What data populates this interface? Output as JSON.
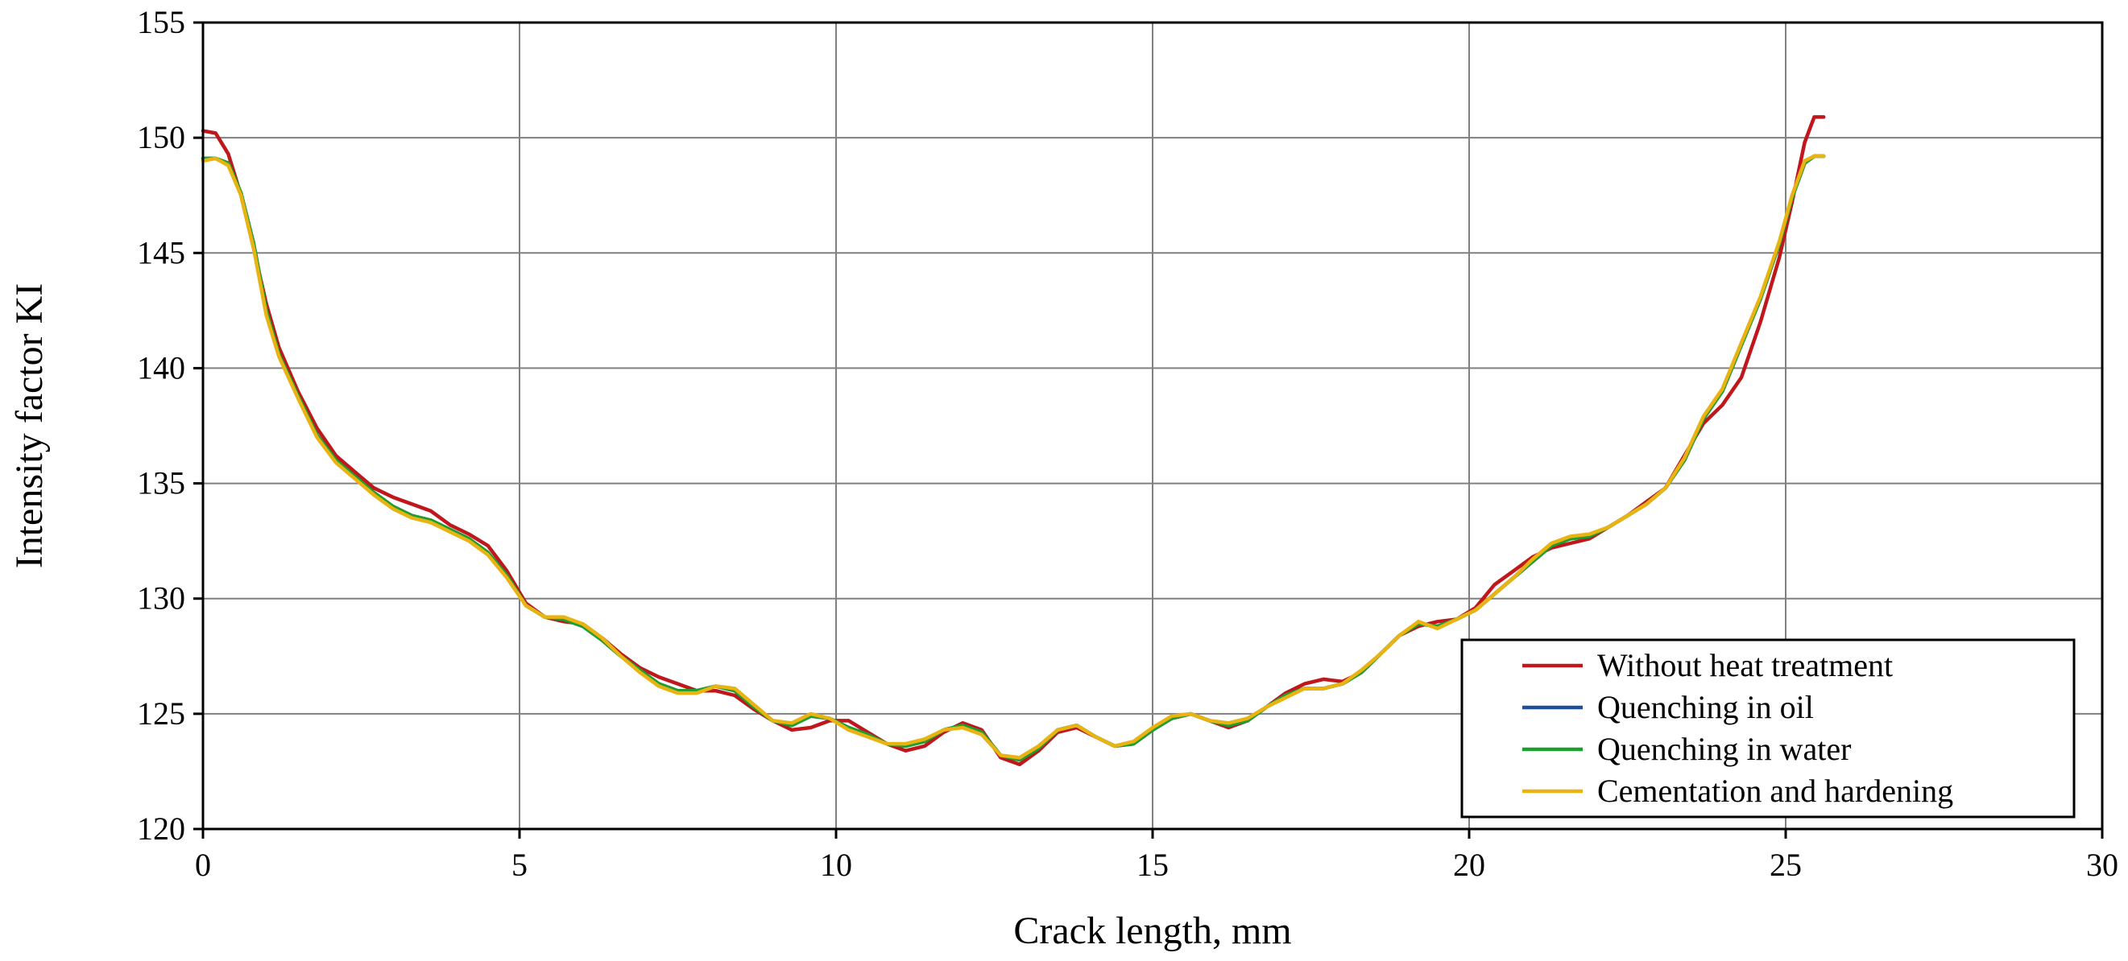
{
  "chart_data": {
    "type": "line",
    "title": "",
    "xlabel": "Crack length, mm",
    "ylabel": "Intensity factor KI",
    "xlim": [
      0,
      30
    ],
    "ylim": [
      120,
      155
    ],
    "xticks": [
      0,
      5,
      10,
      15,
      20,
      25,
      30
    ],
    "yticks": [
      120,
      125,
      130,
      135,
      140,
      145,
      150,
      155
    ],
    "grid": true,
    "legend_position": "lower-right",
    "series": [
      {
        "name": "Without heat treatment",
        "color": "#c0171c",
        "x": [
          0,
          0.2,
          0.4,
          0.6,
          0.8,
          1.0,
          1.2,
          1.5,
          1.8,
          2.1,
          2.4,
          2.7,
          3.0,
          3.3,
          3.6,
          3.9,
          4.2,
          4.5,
          4.8,
          5.1,
          5.4,
          5.7,
          6.0,
          6.3,
          6.6,
          6.9,
          7.2,
          7.5,
          7.8,
          8.1,
          8.4,
          8.7,
          9.0,
          9.3,
          9.6,
          9.9,
          10.2,
          10.5,
          10.8,
          11.1,
          11.4,
          11.7,
          12.0,
          12.3,
          12.6,
          12.9,
          13.2,
          13.5,
          13.8,
          14.1,
          14.4,
          14.7,
          15.0,
          15.3,
          15.6,
          15.9,
          16.2,
          16.5,
          16.8,
          17.1,
          17.4,
          17.7,
          18.0,
          18.3,
          18.6,
          18.9,
          19.2,
          19.5,
          19.8,
          20.1,
          20.4,
          20.7,
          21.0,
          21.3,
          21.6,
          21.9,
          22.2,
          22.5,
          22.8,
          23.1,
          23.4,
          23.7,
          24.0,
          24.3,
          24.6,
          24.9,
          25.1,
          25.3,
          25.45,
          25.6
        ],
        "y": [
          150.3,
          150.2,
          149.3,
          147.5,
          145.2,
          142.8,
          140.9,
          139.0,
          137.4,
          136.2,
          135.5,
          134.8,
          134.4,
          134.1,
          133.8,
          133.2,
          132.8,
          132.3,
          131.2,
          129.8,
          129.2,
          129.0,
          128.9,
          128.3,
          127.6,
          127.0,
          126.6,
          126.3,
          126.0,
          126.0,
          125.8,
          125.2,
          124.7,
          124.3,
          124.4,
          124.7,
          124.7,
          124.2,
          123.7,
          123.4,
          123.6,
          124.2,
          124.6,
          124.3,
          123.1,
          122.8,
          123.4,
          124.2,
          124.4,
          124.0,
          123.6,
          123.7,
          124.3,
          124.8,
          125.0,
          124.7,
          124.4,
          124.7,
          125.3,
          125.9,
          126.3,
          126.5,
          126.4,
          126.8,
          127.6,
          128.4,
          128.8,
          129.0,
          129.1,
          129.6,
          130.6,
          131.2,
          131.8,
          132.2,
          132.4,
          132.6,
          133.1,
          133.6,
          134.2,
          134.8,
          136.2,
          137.6,
          138.4,
          139.6,
          142.0,
          144.8,
          147.2,
          149.8,
          150.9,
          150.9
        ]
      },
      {
        "name": "Quenching in oil",
        "color": "#1f4e9a",
        "x": [
          0,
          0.2,
          0.4,
          0.6,
          0.8,
          1.0,
          1.2,
          1.5,
          1.8,
          2.1,
          2.4,
          2.7,
          3.0,
          3.3,
          3.6,
          3.9,
          4.2,
          4.5,
          4.8,
          5.1,
          5.4,
          5.7,
          6.0,
          6.3,
          6.6,
          6.9,
          7.2,
          7.5,
          7.8,
          8.1,
          8.4,
          8.7,
          9.0,
          9.3,
          9.6,
          9.9,
          10.2,
          10.5,
          10.8,
          11.1,
          11.4,
          11.7,
          12.0,
          12.3,
          12.6,
          12.9,
          13.2,
          13.5,
          13.8,
          14.1,
          14.4,
          14.7,
          15.0,
          15.3,
          15.6,
          15.9,
          16.2,
          16.5,
          16.8,
          17.1,
          17.4,
          17.7,
          18.0,
          18.3,
          18.6,
          18.9,
          19.2,
          19.5,
          19.8,
          20.1,
          20.4,
          20.7,
          21.0,
          21.3,
          21.6,
          21.9,
          22.2,
          22.5,
          22.8,
          23.1,
          23.4,
          23.7,
          24.0,
          24.3,
          24.6,
          24.9,
          25.1,
          25.3,
          25.45,
          25.6
        ],
        "y": [
          149.1,
          149.1,
          148.9,
          147.6,
          145.4,
          142.5,
          140.6,
          138.8,
          137.1,
          136.0,
          135.3,
          134.6,
          134.0,
          133.6,
          133.4,
          133.0,
          132.6,
          132.0,
          131.0,
          129.7,
          129.2,
          129.1,
          128.8,
          128.2,
          127.5,
          126.9,
          126.3,
          126.0,
          126.0,
          126.2,
          126.0,
          125.3,
          124.7,
          124.5,
          124.9,
          124.8,
          124.4,
          124.1,
          123.7,
          123.6,
          123.8,
          124.3,
          124.5,
          124.2,
          123.2,
          123.0,
          123.5,
          124.3,
          124.5,
          124.0,
          123.6,
          123.7,
          124.3,
          124.8,
          125.0,
          124.7,
          124.5,
          124.7,
          125.3,
          125.8,
          126.1,
          126.1,
          126.3,
          126.8,
          127.6,
          128.4,
          128.9,
          128.8,
          129.1,
          129.5,
          130.2,
          130.9,
          131.6,
          132.3,
          132.6,
          132.7,
          133.1,
          133.6,
          134.1,
          134.8,
          136.0,
          137.8,
          139.0,
          141.0,
          143.0,
          145.4,
          147.4,
          148.9,
          149.2,
          149.2
        ]
      },
      {
        "name": "Quenching in water",
        "color": "#1e9e2e",
        "x": [
          0,
          0.2,
          0.4,
          0.6,
          0.8,
          1.0,
          1.2,
          1.5,
          1.8,
          2.1,
          2.4,
          2.7,
          3.0,
          3.3,
          3.6,
          3.9,
          4.2,
          4.5,
          4.8,
          5.1,
          5.4,
          5.7,
          6.0,
          6.3,
          6.6,
          6.9,
          7.2,
          7.5,
          7.8,
          8.1,
          8.4,
          8.7,
          9.0,
          9.3,
          9.6,
          9.9,
          10.2,
          10.5,
          10.8,
          11.1,
          11.4,
          11.7,
          12.0,
          12.3,
          12.6,
          12.9,
          13.2,
          13.5,
          13.8,
          14.1,
          14.4,
          14.7,
          15.0,
          15.3,
          15.6,
          15.9,
          16.2,
          16.5,
          16.8,
          17.1,
          17.4,
          17.7,
          18.0,
          18.3,
          18.6,
          18.9,
          19.2,
          19.5,
          19.8,
          20.1,
          20.4,
          20.7,
          21.0,
          21.3,
          21.6,
          21.9,
          22.2,
          22.5,
          22.8,
          23.1,
          23.4,
          23.7,
          24.0,
          24.3,
          24.6,
          24.9,
          25.1,
          25.3,
          25.45,
          25.6
        ],
        "y": [
          149.1,
          149.1,
          148.9,
          147.6,
          145.4,
          142.5,
          140.6,
          138.8,
          137.1,
          136.0,
          135.3,
          134.6,
          134.0,
          133.6,
          133.4,
          133.0,
          132.6,
          132.0,
          131.0,
          129.7,
          129.2,
          129.1,
          128.8,
          128.2,
          127.5,
          126.9,
          126.3,
          126.0,
          126.0,
          126.2,
          126.0,
          125.3,
          124.7,
          124.5,
          124.9,
          124.8,
          124.4,
          124.1,
          123.7,
          123.6,
          123.8,
          124.3,
          124.5,
          124.2,
          123.2,
          123.0,
          123.5,
          124.3,
          124.5,
          124.0,
          123.6,
          123.7,
          124.3,
          124.8,
          125.0,
          124.7,
          124.5,
          124.7,
          125.3,
          125.8,
          126.1,
          126.1,
          126.3,
          126.8,
          127.6,
          128.4,
          128.9,
          128.8,
          129.1,
          129.5,
          130.2,
          130.9,
          131.6,
          132.3,
          132.6,
          132.7,
          133.1,
          133.6,
          134.1,
          134.8,
          136.0,
          137.8,
          139.0,
          141.0,
          143.0,
          145.4,
          147.4,
          148.9,
          149.2,
          149.2
        ]
      },
      {
        "name": "Cementation and hardening",
        "color": "#e9b312",
        "x": [
          0,
          0.2,
          0.4,
          0.6,
          0.8,
          1.0,
          1.2,
          1.5,
          1.8,
          2.1,
          2.4,
          2.7,
          3.0,
          3.3,
          3.6,
          3.9,
          4.2,
          4.5,
          4.8,
          5.1,
          5.4,
          5.7,
          6.0,
          6.3,
          6.6,
          6.9,
          7.2,
          7.5,
          7.8,
          8.1,
          8.4,
          8.7,
          9.0,
          9.3,
          9.6,
          9.9,
          10.2,
          10.5,
          10.8,
          11.1,
          11.4,
          11.7,
          12.0,
          12.3,
          12.6,
          12.9,
          13.2,
          13.5,
          13.8,
          14.1,
          14.4,
          14.7,
          15.0,
          15.3,
          15.6,
          15.9,
          16.2,
          16.5,
          16.8,
          17.1,
          17.4,
          17.7,
          18.0,
          18.3,
          18.6,
          18.9,
          19.2,
          19.5,
          19.8,
          20.1,
          20.4,
          20.7,
          21.0,
          21.3,
          21.6,
          21.9,
          22.2,
          22.5,
          22.8,
          23.1,
          23.4,
          23.7,
          24.0,
          24.3,
          24.6,
          24.9,
          25.1,
          25.3,
          25.45,
          25.6
        ],
        "y": [
          149.0,
          149.1,
          148.8,
          147.5,
          145.2,
          142.3,
          140.5,
          138.7,
          137.0,
          135.9,
          135.2,
          134.5,
          133.9,
          133.5,
          133.3,
          132.9,
          132.5,
          131.9,
          130.9,
          129.7,
          129.2,
          129.2,
          128.9,
          128.3,
          127.5,
          126.8,
          126.2,
          125.9,
          125.9,
          126.2,
          126.1,
          125.4,
          124.7,
          124.6,
          125.0,
          124.8,
          124.3,
          124.0,
          123.7,
          123.7,
          123.9,
          124.3,
          124.4,
          124.1,
          123.2,
          123.1,
          123.6,
          124.3,
          124.5,
          124.0,
          123.6,
          123.8,
          124.4,
          124.9,
          125.0,
          124.7,
          124.6,
          124.8,
          125.3,
          125.7,
          126.1,
          126.1,
          126.3,
          126.9,
          127.6,
          128.4,
          129.0,
          128.7,
          129.1,
          129.5,
          130.2,
          130.9,
          131.7,
          132.4,
          132.7,
          132.8,
          133.1,
          133.6,
          134.1,
          134.8,
          136.1,
          137.9,
          139.1,
          141.1,
          143.1,
          145.5,
          147.5,
          149.0,
          149.2,
          149.2
        ]
      }
    ]
  }
}
